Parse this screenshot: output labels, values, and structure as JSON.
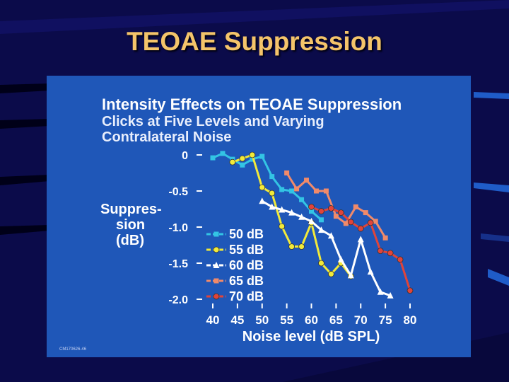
{
  "slide": {
    "title": "TEOAE Suppression",
    "credit": "CM170626-46"
  },
  "chart_data": {
    "type": "line",
    "title": "Intensity Effects on TEOAE Suppression",
    "subtitle_lines": [
      "Clicks at Five Levels and Varying",
      "Contralateral Noise"
    ],
    "ylabel_lines": [
      "Suppres-",
      "sion",
      "(dB)"
    ],
    "xlabel": "Noise level (dB SPL)",
    "x_ticks": [
      "40",
      "45",
      "50",
      "55",
      "60",
      "65",
      "70",
      "75",
      "80"
    ],
    "y_ticks": [
      "0",
      "-0.5",
      "-1.0",
      "-1.5",
      "-2.0"
    ],
    "x_tick_values": [
      40,
      45,
      50,
      55,
      60,
      65,
      70,
      75,
      80
    ],
    "y_tick_values": [
      0,
      -0.5,
      -1.0,
      -1.5,
      -2.0
    ],
    "xlim": [
      40,
      80
    ],
    "ylim": [
      -2.0,
      0
    ],
    "grid": false,
    "legend_position": "bottom-left",
    "series": [
      {
        "name": "50 dB",
        "color": "#33c4e4",
        "marker": "square",
        "x": [
          40,
          42,
          44,
          46,
          48,
          50,
          52,
          54,
          56,
          58,
          60,
          62
        ],
        "y": [
          -0.04,
          0.02,
          -0.06,
          -0.14,
          -0.06,
          -0.02,
          -0.3,
          -0.48,
          -0.5,
          -0.62,
          -0.78,
          -0.9
        ]
      },
      {
        "name": "55 dB",
        "color": "#f2ea3a",
        "marker": "circle",
        "x": [
          44,
          46,
          48,
          50,
          52,
          54,
          56,
          58,
          60,
          62,
          64,
          66,
          68
        ],
        "y": [
          -0.1,
          -0.05,
          0.0,
          -0.45,
          -0.53,
          -0.99,
          -1.27,
          -1.27,
          -0.94,
          -1.5,
          -1.65,
          -1.5,
          -1.68
        ]
      },
      {
        "name": "60 dB",
        "color": "#ffffff",
        "marker": "triangle",
        "x": [
          50,
          52,
          54,
          56,
          58,
          60,
          62,
          64,
          66,
          68,
          70,
          72,
          74,
          76
        ],
        "y": [
          -0.64,
          -0.72,
          -0.76,
          -0.8,
          -0.86,
          -0.92,
          -1.04,
          -1.12,
          -1.45,
          -1.67,
          -1.17,
          -1.62,
          -1.9,
          -1.95
        ]
      },
      {
        "name": "65 dB",
        "color": "#f08a6a",
        "marker": "square",
        "x": [
          55,
          57,
          59,
          61,
          63,
          65,
          67,
          69,
          71,
          73,
          75
        ],
        "y": [
          -0.25,
          -0.47,
          -0.35,
          -0.5,
          -0.5,
          -0.85,
          -0.95,
          -0.72,
          -0.8,
          -0.92,
          -1.15
        ]
      },
      {
        "name": "70 dB",
        "color": "#e0443a",
        "marker": "circle",
        "x": [
          60,
          62,
          64,
          66,
          68,
          70,
          72,
          74,
          76,
          78,
          80
        ],
        "y": [
          -0.72,
          -0.78,
          -0.74,
          -0.8,
          -0.93,
          -1.02,
          -0.94,
          -1.33,
          -1.36,
          -1.45,
          -1.88
        ]
      }
    ]
  }
}
